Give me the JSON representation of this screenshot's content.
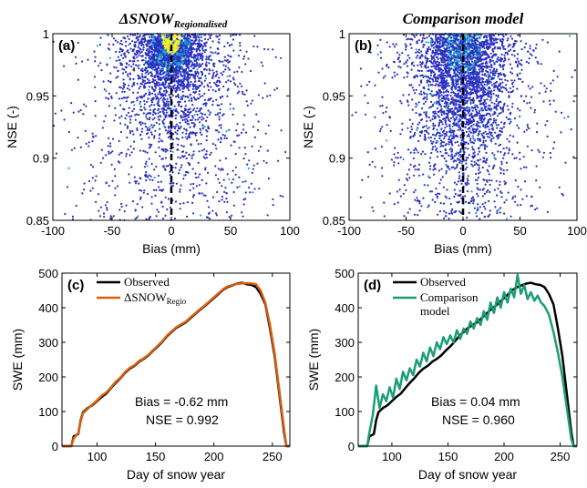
{
  "colors": {
    "scatter_low": "#2b2fbf",
    "scatter_mid": "#1fa7c9",
    "scatter_high": "#f4ee2a",
    "observed": "#000000",
    "delta_snow": "#d95f0e",
    "comparison": "#1b9e77",
    "zero_line": "#000000"
  },
  "chart_data": [
    {
      "id": "a",
      "type": "scatter",
      "panel_label": "(a)",
      "title_prefix": "Δ",
      "title_main": "SNOW",
      "title_sub": "Regionalised",
      "xlabel": "Bias (mm)",
      "ylabel": "NSE (-)",
      "xlim": [
        -100,
        100
      ],
      "ylim": [
        0.85,
        1
      ],
      "xticks": [
        -100,
        -50,
        0,
        50,
        100
      ],
      "yticks": [
        0.85,
        0.9,
        0.95,
        1
      ],
      "ytick_labels": [
        "0.85",
        "0.9",
        "0.95",
        "1"
      ],
      "vertical_reference_x": 0,
      "density_cluster": {
        "center_bias": 0,
        "center_nse": 0.985,
        "note_colors": "yellow core at top near zero bias"
      }
    },
    {
      "id": "b",
      "type": "scatter",
      "panel_label": "(b)",
      "title_main": "Comparison model",
      "xlabel": "Bias (mm)",
      "ylabel": "NSE (-)",
      "xlim": [
        -100,
        100
      ],
      "ylim": [
        0.85,
        1
      ],
      "xticks": [
        -100,
        -50,
        0,
        50,
        100
      ],
      "yticks": [
        0.85,
        0.9,
        0.95,
        1
      ],
      "ytick_labels": [
        "0.85",
        "0.9",
        "0.95",
        "1"
      ],
      "vertical_reference_x": 0
    },
    {
      "id": "c",
      "type": "line",
      "panel_label": "(c)",
      "xlabel": "Day of snow year",
      "ylabel": "SWE (mm)",
      "xlim": [
        70,
        265
      ],
      "ylim": [
        0,
        500
      ],
      "xticks": [
        100,
        150,
        200,
        250
      ],
      "yticks": [
        0,
        100,
        200,
        300,
        400,
        500
      ],
      "legend": {
        "placement": "top-left",
        "entries": [
          "Observed",
          "ΔSNOW"
        ],
        "sub": "Regio"
      },
      "stats": {
        "bias": "Bias = -0.62 mm",
        "nse": "NSE = 0.992"
      },
      "series": [
        {
          "name": "Observed",
          "color_key": "observed",
          "points": [
            [
              70,
              0
            ],
            [
              78,
              0
            ],
            [
              80,
              28
            ],
            [
              84,
              35
            ],
            [
              86,
              75
            ],
            [
              88,
              98
            ],
            [
              92,
              110
            ],
            [
              96,
              118
            ],
            [
              100,
              130
            ],
            [
              104,
              142
            ],
            [
              108,
              152
            ],
            [
              112,
              168
            ],
            [
              116,
              183
            ],
            [
              120,
              196
            ],
            [
              124,
              212
            ],
            [
              128,
              224
            ],
            [
              132,
              232
            ],
            [
              136,
              244
            ],
            [
              140,
              252
            ],
            [
              144,
              262
            ],
            [
              148,
              276
            ],
            [
              152,
              288
            ],
            [
              156,
              302
            ],
            [
              160,
              318
            ],
            [
              164,
              330
            ],
            [
              168,
              342
            ],
            [
              172,
              350
            ],
            [
              176,
              358
            ],
            [
              180,
              370
            ],
            [
              184,
              382
            ],
            [
              188,
              394
            ],
            [
              192,
              404
            ],
            [
              196,
              416
            ],
            [
              200,
              428
            ],
            [
              204,
              440
            ],
            [
              208,
              452
            ],
            [
              212,
              460
            ],
            [
              216,
              465
            ],
            [
              220,
              470
            ],
            [
              224,
              472
            ],
            [
              228,
              468
            ],
            [
              232,
              466
            ],
            [
              236,
              460
            ],
            [
              240,
              440
            ],
            [
              244,
              410
            ],
            [
              248,
              340
            ],
            [
              252,
              260
            ],
            [
              256,
              150
            ],
            [
              260,
              40
            ],
            [
              262,
              0
            ],
            [
              265,
              0
            ]
          ]
        },
        {
          "name": "ΔSNOW Regio",
          "color_key": "delta_snow",
          "points": [
            [
              70,
              0
            ],
            [
              78,
              0
            ],
            [
              80,
              22
            ],
            [
              84,
              38
            ],
            [
              86,
              72
            ],
            [
              88,
              95
            ],
            [
              92,
              108
            ],
            [
              96,
              120
            ],
            [
              100,
              132
            ],
            [
              104,
              146
            ],
            [
              108,
              155
            ],
            [
              112,
              170
            ],
            [
              116,
              186
            ],
            [
              120,
              198
            ],
            [
              124,
              214
            ],
            [
              128,
              226
            ],
            [
              132,
              234
            ],
            [
              136,
              246
            ],
            [
              140,
              254
            ],
            [
              144,
              264
            ],
            [
              148,
              278
            ],
            [
              152,
              290
            ],
            [
              156,
              304
            ],
            [
              160,
              320
            ],
            [
              164,
              332
            ],
            [
              168,
              344
            ],
            [
              172,
              352
            ],
            [
              176,
              360
            ],
            [
              180,
              372
            ],
            [
              184,
              384
            ],
            [
              188,
              396
            ],
            [
              192,
              406
            ],
            [
              196,
              418
            ],
            [
              200,
              430
            ],
            [
              204,
              442
            ],
            [
              208,
              454
            ],
            [
              212,
              462
            ],
            [
              216,
              466
            ],
            [
              220,
              469
            ],
            [
              224,
              470
            ],
            [
              228,
              471
            ],
            [
              232,
              470
            ],
            [
              236,
              468
            ],
            [
              240,
              450
            ],
            [
              244,
              414
            ],
            [
              248,
              350
            ],
            [
              252,
              268
            ],
            [
              256,
              160
            ],
            [
              260,
              50
            ],
            [
              262,
              0
            ],
            [
              265,
              0
            ]
          ]
        }
      ]
    },
    {
      "id": "d",
      "type": "line",
      "panel_label": "(d)",
      "xlabel": "Day of snow year",
      "ylabel": "SWE (mm)",
      "xlim": [
        70,
        265
      ],
      "ylim": [
        0,
        500
      ],
      "xticks": [
        100,
        150,
        200,
        250
      ],
      "yticks": [
        0,
        100,
        200,
        300,
        400,
        500
      ],
      "legend": {
        "placement": "top-left",
        "entries": [
          "Observed",
          "Comparison",
          "model"
        ]
      },
      "stats": {
        "bias": "Bias = 0.04 mm",
        "nse": "NSE = 0.960"
      },
      "series": [
        {
          "name": "Observed",
          "color_key": "observed",
          "points": [
            [
              70,
              0
            ],
            [
              78,
              0
            ],
            [
              80,
              28
            ],
            [
              84,
              35
            ],
            [
              86,
              75
            ],
            [
              88,
              98
            ],
            [
              92,
              110
            ],
            [
              96,
              118
            ],
            [
              100,
              130
            ],
            [
              104,
              142
            ],
            [
              108,
              152
            ],
            [
              112,
              168
            ],
            [
              116,
              183
            ],
            [
              120,
              196
            ],
            [
              124,
              212
            ],
            [
              128,
              224
            ],
            [
              132,
              232
            ],
            [
              136,
              244
            ],
            [
              140,
              252
            ],
            [
              144,
              262
            ],
            [
              148,
              276
            ],
            [
              152,
              288
            ],
            [
              156,
              302
            ],
            [
              160,
              318
            ],
            [
              164,
              330
            ],
            [
              168,
              342
            ],
            [
              172,
              350
            ],
            [
              176,
              358
            ],
            [
              180,
              370
            ],
            [
              184,
              382
            ],
            [
              188,
              394
            ],
            [
              192,
              404
            ],
            [
              196,
              416
            ],
            [
              200,
              428
            ],
            [
              204,
              440
            ],
            [
              208,
              452
            ],
            [
              212,
              460
            ],
            [
              216,
              465
            ],
            [
              220,
              470
            ],
            [
              224,
              472
            ],
            [
              228,
              468
            ],
            [
              232,
              466
            ],
            [
              236,
              460
            ],
            [
              240,
              440
            ],
            [
              244,
              410
            ],
            [
              248,
              340
            ],
            [
              252,
              260
            ],
            [
              256,
              150
            ],
            [
              260,
              40
            ],
            [
              262,
              0
            ],
            [
              265,
              0
            ]
          ]
        },
        {
          "name": "Comparison model",
          "color_key": "comparison",
          "points": [
            [
              70,
              0
            ],
            [
              78,
              0
            ],
            [
              80,
              40
            ],
            [
              83,
              90
            ],
            [
              86,
              175
            ],
            [
              89,
              110
            ],
            [
              92,
              150
            ],
            [
              95,
              130
            ],
            [
              98,
              170
            ],
            [
              101,
              140
            ],
            [
              104,
              195
            ],
            [
              107,
              165
            ],
            [
              110,
              215
            ],
            [
              113,
              190
            ],
            [
              116,
              225
            ],
            [
              119,
              205
            ],
            [
              122,
              250
            ],
            [
              125,
              230
            ],
            [
              128,
              270
            ],
            [
              131,
              245
            ],
            [
              134,
              285
            ],
            [
              137,
              260
            ],
            [
              140,
              300
            ],
            [
              143,
              280
            ],
            [
              146,
              315
            ],
            [
              149,
              295
            ],
            [
              152,
              320
            ],
            [
              155,
              300
            ],
            [
              158,
              335
            ],
            [
              161,
              310
            ],
            [
              164,
              340
            ],
            [
              167,
              325
            ],
            [
              170,
              360
            ],
            [
              173,
              340
            ],
            [
              176,
              370
            ],
            [
              179,
              350
            ],
            [
              182,
              390
            ],
            [
              185,
              365
            ],
            [
              188,
              415
            ],
            [
              191,
              385
            ],
            [
              194,
              430
            ],
            [
              197,
              400
            ],
            [
              200,
              445
            ],
            [
              203,
              415
            ],
            [
              206,
              455
            ],
            [
              209,
              430
            ],
            [
              212,
              495
            ],
            [
              215,
              440
            ],
            [
              218,
              465
            ],
            [
              221,
              425
            ],
            [
              224,
              445
            ],
            [
              227,
              420
            ],
            [
              230,
              435
            ],
            [
              233,
              415
            ],
            [
              236,
              405
            ],
            [
              240,
              380
            ],
            [
              244,
              330
            ],
            [
              248,
              270
            ],
            [
              252,
              200
            ],
            [
              256,
              110
            ],
            [
              260,
              20
            ],
            [
              262,
              0
            ],
            [
              265,
              0
            ]
          ]
        }
      ]
    }
  ]
}
